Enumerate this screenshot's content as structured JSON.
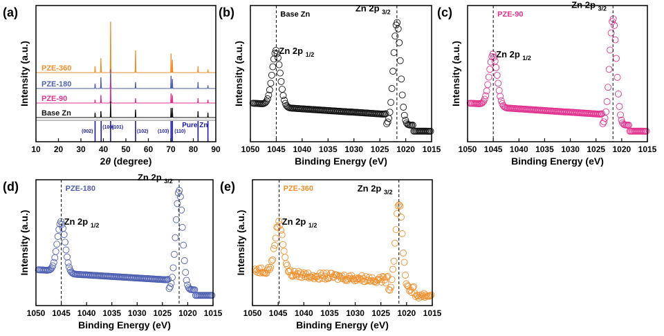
{
  "chart_data": [
    {
      "panel": "(a)",
      "type": "line",
      "xlabel": "2θ (degree)",
      "ylabel": "Intensity (a.u.)",
      "xlim": [
        10,
        90
      ],
      "xticks": [
        10,
        20,
        30,
        40,
        50,
        60,
        70,
        80,
        90
      ],
      "series": [
        {
          "name": "PZE-360",
          "color": "#f28e2b",
          "peaks": [
            [
              36.3,
              0.2
            ],
            [
              38.9,
              0.45
            ],
            [
              43.2,
              1.6
            ],
            [
              54.3,
              0.7
            ],
            [
              70.1,
              0.6
            ],
            [
              70.7,
              0.4
            ],
            [
              82.1,
              0.2
            ],
            [
              86.5,
              0.1
            ]
          ]
        },
        {
          "name": "PZE-180",
          "color": "#4e5fb0",
          "peaks": [
            [
              36.3,
              0.15
            ],
            [
              38.9,
              0.35
            ],
            [
              43.2,
              0.6
            ],
            [
              54.3,
              0.2
            ],
            [
              70.1,
              0.4
            ],
            [
              70.7,
              0.3
            ],
            [
              82.1,
              0.2
            ],
            [
              86.5,
              0.1
            ]
          ]
        },
        {
          "name": "PZE-90",
          "color": "#e0338f",
          "peaks": [
            [
              36.3,
              0.1
            ],
            [
              38.9,
              0.25
            ],
            [
              43.2,
              0.8
            ],
            [
              54.3,
              0.15
            ],
            [
              70.1,
              0.3
            ],
            [
              70.7,
              0.25
            ],
            [
              82.1,
              0.15
            ],
            [
              86.5,
              0.1
            ]
          ]
        },
        {
          "name": "Base Zn",
          "color": "#111111",
          "peaks": [
            [
              36.3,
              0.15
            ],
            [
              38.9,
              0.2
            ],
            [
              43.2,
              0.5
            ],
            [
              54.3,
              0.25
            ],
            [
              70.1,
              0.3
            ],
            [
              70.7,
              0.3
            ],
            [
              82.1,
              0.2
            ],
            [
              86.5,
              0.15
            ]
          ]
        }
      ],
      "reference": {
        "name": "Pure Zn",
        "color": "#1a1a9e",
        "peaks": [
          {
            "x": 36.3,
            "label": "(002)"
          },
          {
            "x": 39.0,
            "label": "(100)"
          },
          {
            "x": 43.2,
            "label": "(101)"
          },
          {
            "x": 54.3,
            "label": "(102)"
          },
          {
            "x": 70.1,
            "label": "(103)"
          },
          {
            "x": 70.7,
            "label": "(110)"
          },
          {
            "x": 82.1,
            "label": ""
          },
          {
            "x": 86.5,
            "label": ""
          }
        ]
      }
    },
    {
      "panel": "(b)",
      "sample": "Base Zn",
      "type": "scatter",
      "color": "#111111",
      "xlabel": "Binding Energy (eV)",
      "ylabel": "Intensity (a.u.)",
      "xlim": [
        1050,
        1015
      ],
      "xticks": [
        1050,
        1045,
        1040,
        1035,
        1030,
        1025,
        1020,
        1015
      ],
      "peaks": [
        {
          "x": 1045.0,
          "label": "Zn 2p",
          "sub": "1/2"
        },
        {
          "x": 1021.7,
          "label": "Zn 2p",
          "sub": "3/2"
        }
      ],
      "peak_heights": [
        0.45,
        0.85
      ],
      "noise": 0.0
    },
    {
      "panel": "(c)",
      "sample": "PZE-90",
      "type": "scatter",
      "color": "#e0338f",
      "xlabel": "Binding Energy (eV)",
      "ylabel": "Intensity (a.u.)",
      "xlim": [
        1050,
        1015
      ],
      "xticks": [
        1050,
        1045,
        1040,
        1035,
        1030,
        1025,
        1020,
        1015
      ],
      "peaks": [
        {
          "x": 1045.0,
          "label": "Zn 2p",
          "sub": "1/2"
        },
        {
          "x": 1021.7,
          "label": "Zn 2p",
          "sub": "3/2"
        }
      ],
      "peak_heights": [
        0.42,
        0.88
      ],
      "noise": 0.0
    },
    {
      "panel": "(d)",
      "sample": "PZE-180",
      "type": "scatter",
      "color": "#4e5fb0",
      "xlabel": "Binding Energy (eV)",
      "ylabel": "Intensity (a.u.)",
      "xlim": [
        1050,
        1015
      ],
      "xticks": [
        1050,
        1045,
        1040,
        1035,
        1030,
        1025,
        1020,
        1015
      ],
      "peaks": [
        {
          "x": 1045.0,
          "label": "Zn 2p",
          "sub": "1/2"
        },
        {
          "x": 1021.7,
          "label": "Zn 2p",
          "sub": "3/2"
        }
      ],
      "peak_heights": [
        0.45,
        0.9
      ],
      "noise": 0.0
    },
    {
      "panel": "(e)",
      "sample": "PZE-360",
      "type": "scatter",
      "color": "#f28e2b",
      "xlabel": "Binding Energy (eV)",
      "ylabel": "Intensity (a.u.)",
      "xlim": [
        1050,
        1015
      ],
      "xticks": [
        1050,
        1045,
        1040,
        1035,
        1030,
        1025,
        1020,
        1015
      ],
      "peaks": [
        {
          "x": 1044.8,
          "label": "Zn 2p",
          "sub": "1/2"
        },
        {
          "x": 1021.5,
          "label": "Zn 2p",
          "sub": "3/2"
        }
      ],
      "peak_heights": [
        0.45,
        0.8
      ],
      "noise": 0.03
    }
  ]
}
